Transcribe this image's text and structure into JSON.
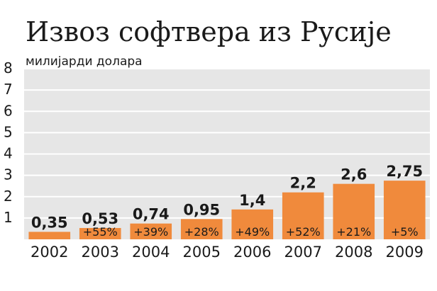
{
  "chart_data": {
    "type": "bar",
    "title": "Извоз софтвера из Русије",
    "ylabel": "милијарди долара",
    "categories": [
      "2002",
      "2003",
      "2004",
      "2005",
      "2006",
      "2007",
      "2008",
      "2009"
    ],
    "values": [
      0.35,
      0.53,
      0.74,
      0.95,
      1.4,
      2.2,
      2.6,
      2.75
    ],
    "value_labels": [
      "0,35",
      "0,53",
      "0,74",
      "0,95",
      "1,4",
      "2,2",
      "2,6",
      "2,75"
    ],
    "growth_labels": [
      "",
      "+55%",
      "+39%",
      "+28%",
      "+49%",
      "+52%",
      "+21%",
      "+5%"
    ],
    "yticks": [
      "1",
      "2",
      "3",
      "4",
      "5",
      "6",
      "7",
      "8"
    ],
    "ylim": [
      0,
      8
    ],
    "grid": true,
    "colors": {
      "bar": "#f08a3c",
      "plot_bg": "#e6e6e6",
      "grid": "#ffffff",
      "text": "#1a1a1a"
    }
  }
}
